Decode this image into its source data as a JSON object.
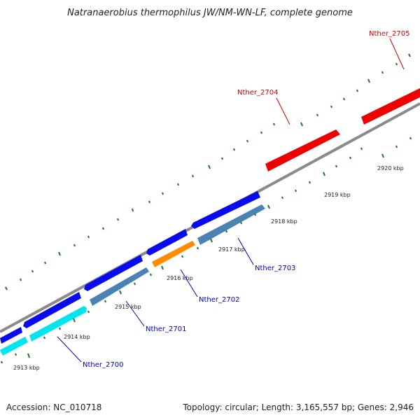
{
  "title": "Natranaerobius thermophilus JW/NM-WN-LF, complete genome",
  "colors": {
    "backbone": "#8a8a8a",
    "tick_major": "#1a7a1a",
    "tick_minor": "#1a7a1a",
    "forward_gene": "#0a0aee",
    "reverse_gene": "#4a82b4",
    "forward_rna_like": "#ee0000",
    "cyan_gene": "#00e5ee",
    "orange_gene": "#ff8c00",
    "label_forward": "#0000bb",
    "label_reverse": "#cc0000"
  },
  "scale_labels": [
    "2913 kbp",
    "2914 kbp",
    "2915 kbp",
    "2916 kbp",
    "2917 kbp",
    "2918 kbp",
    "2919 kbp",
    "2920 kbp"
  ],
  "gene_labels": [
    {
      "text": "Nther_2700",
      "color": "blue"
    },
    {
      "text": "Nther_2701",
      "color": "blue"
    },
    {
      "text": "Nther_2702",
      "color": "blue"
    },
    {
      "text": "Nther_2703",
      "color": "blue"
    },
    {
      "text": "Nther_2704",
      "color": "red"
    },
    {
      "text": "Nther_2705",
      "color": "red"
    }
  ],
  "footer": {
    "accession": "Accession: NC_010718",
    "topology": "Topology: circular; Length: 3,165,557 bp; Genes: 2,946"
  }
}
